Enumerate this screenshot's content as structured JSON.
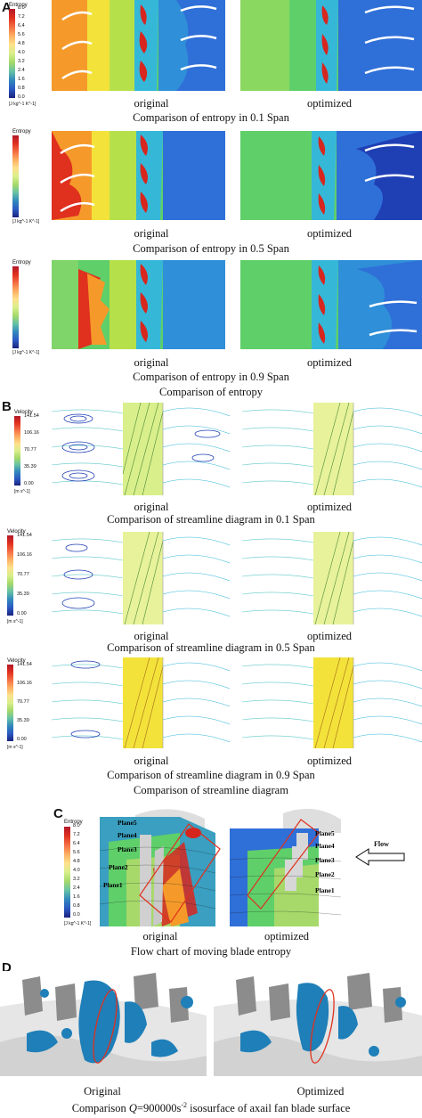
{
  "panels": {
    "a": "A",
    "b": "B",
    "c": "C",
    "d": "D"
  },
  "entropy_colorbar": {
    "title": "Entropy",
    "ticks": [
      "8.0",
      "7.2",
      "6.4",
      "5.6",
      "4.8",
      "4.0",
      "3.2",
      "2.4",
      "1.6",
      "0.8",
      "0.0"
    ],
    "unit": "[J kg^-1 K^-1]"
  },
  "velocity_colorbar": {
    "title": "Velocity",
    "ticks": [
      "141.54",
      "106.16",
      "70.77",
      "35.39",
      "0.00"
    ],
    "unit": "[m s^-1]"
  },
  "labels": {
    "original": "original",
    "optimized": "optimized",
    "original_cap": "Original",
    "optimized_cap": "Optimized"
  },
  "captions": {
    "a1": "Comparison of entropy in 0.1 Span",
    "a2": "Comparison of entropy in 0.5 Span",
    "a3": "Comparison of entropy in 0.9 Span",
    "a_main": "Comparison of entropy",
    "b1": "Comparison of streamline diagram in 0.1 Span",
    "b2": "Comparison of streamline diagram in 0.5 Span",
    "b3": "Comparison of streamline diagram in 0.9 Span",
    "b_main": "Comparison of streamline diagram",
    "c_main": "Flow chart of moving blade entropy",
    "d_prefix": "Comparison ",
    "d_q": "Q",
    "d_mid": "=900000s",
    "d_sup": "-2",
    "d_suffix": " isosurface of axail fan blade surface"
  },
  "planes": [
    "Plane5",
    "Plane4",
    "Plane3",
    "Plane2",
    "Plane1"
  ],
  "flow_label": "Flow",
  "colors": {
    "deep_blue": "#1f3fb5",
    "blue": "#2f6fd8",
    "cyan": "#35b7d8",
    "green": "#5fcf6a",
    "yellow": "#f3e23a",
    "orange": "#f59a2a",
    "red": "#d7261e",
    "teal": "#2d8fb5",
    "grey": "#c9c9c9"
  }
}
